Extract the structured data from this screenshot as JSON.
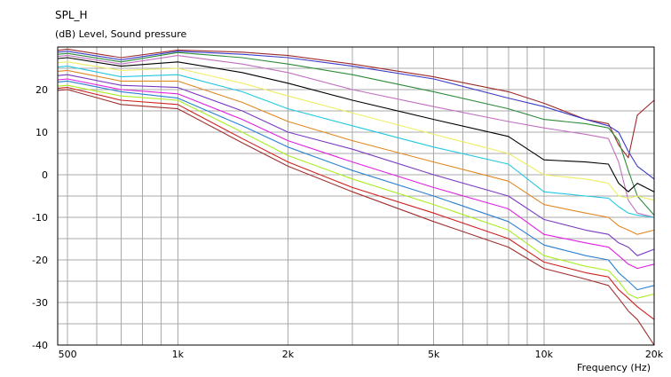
{
  "chart_data": {
    "type": "line",
    "title": "SPL_H",
    "ylabel": "(dB)  Level, Sound pressure",
    "xlabel": "Frequency  (Hz)",
    "x_scale": "log",
    "xlim": [
      470,
      20000
    ],
    "ylim": [
      -40,
      30
    ],
    "grid": true,
    "legend": "none",
    "x_ticks": [
      {
        "value": 500,
        "label": "500"
      },
      {
        "value": 1000,
        "label": "1k"
      },
      {
        "value": 2000,
        "label": "2k"
      },
      {
        "value": 5000,
        "label": "5k"
      },
      {
        "value": 10000,
        "label": "10k"
      },
      {
        "value": 20000,
        "label": "20k"
      }
    ],
    "x_minor": [
      600,
      700,
      800,
      900,
      3000,
      4000,
      6000,
      7000,
      8000,
      9000
    ],
    "y_ticks": [
      {
        "value": 20,
        "label": "20"
      },
      {
        "value": 10,
        "label": "10"
      },
      {
        "value": 0,
        "label": "0"
      },
      {
        "value": -10,
        "label": "-10"
      },
      {
        "value": -20,
        "label": "-20"
      },
      {
        "value": -30,
        "label": "-30"
      },
      {
        "value": -40,
        "label": "-40"
      }
    ],
    "y_grid": [
      30,
      25,
      20,
      15,
      10,
      5,
      0,
      -5,
      -10,
      -15,
      -20,
      -25,
      -30,
      -35,
      -40
    ],
    "x": [
      470,
      500,
      700,
      1000,
      1500,
      2000,
      3000,
      5000,
      8000,
      10000,
      13000,
      15000,
      16000,
      17000,
      18000,
      20000
    ],
    "series": [
      {
        "color": "#9c2a2a",
        "values": [
          29.2,
          29.5,
          27.5,
          29.3,
          28.8,
          28,
          26,
          23,
          19.5,
          16.8,
          13,
          12,
          7,
          4,
          14,
          17.5
        ]
      },
      {
        "color": "#3a3ac8",
        "values": [
          28.8,
          29,
          27,
          29,
          28.3,
          27.5,
          25.5,
          22.5,
          18,
          16,
          13,
          11.5,
          10,
          5.5,
          2,
          -1
        ]
      },
      {
        "color": "#2e8b3a",
        "values": [
          28.3,
          28.5,
          26.5,
          28.7,
          27.5,
          26,
          23.5,
          19.5,
          15.5,
          13,
          12,
          11,
          8,
          1,
          -5,
          -9.5
        ]
      },
      {
        "color": "#c070c0",
        "values": [
          27.8,
          28,
          26,
          28,
          26,
          24,
          20,
          16,
          12.5,
          11,
          9.5,
          8.5,
          3,
          -6,
          -9,
          -10
        ]
      },
      {
        "color": "#000000",
        "values": [
          27.3,
          27.5,
          25.5,
          26.5,
          24,
          21.5,
          17.5,
          13,
          9,
          3.5,
          3,
          2.5,
          -2,
          -4,
          -2,
          -4
        ]
      },
      {
        "color": "#eeee66",
        "values": [
          26.3,
          26.5,
          24.5,
          25,
          21.5,
          18.5,
          14.5,
          9.5,
          5,
          0,
          -1,
          -2,
          -5,
          -5.5,
          -5,
          -6
        ]
      },
      {
        "color": "#22c8e0",
        "values": [
          25.3,
          25.5,
          23,
          23.5,
          19.5,
          15.5,
          11.5,
          6.5,
          2.5,
          -4,
          -5,
          -5.5,
          -7.5,
          -9,
          -9.5,
          -10
        ]
      },
      {
        "color": "#e08822",
        "values": [
          24.3,
          24.5,
          22,
          22,
          17,
          12.5,
          8,
          3,
          -1.5,
          -7,
          -9,
          -10,
          -12,
          -13,
          -14,
          -13
        ]
      },
      {
        "color": "#7a3ac0",
        "values": [
          23.3,
          23.5,
          21,
          20.5,
          15,
          10,
          6,
          0,
          -5,
          -10.5,
          -13,
          -14,
          -16,
          -17,
          -19,
          -17.5
        ]
      },
      {
        "color": "#e020e0",
        "values": [
          22.3,
          22.5,
          20,
          19,
          13,
          8,
          3,
          -3,
          -8,
          -14,
          -16,
          -17,
          -19,
          -21,
          -22,
          -21
        ]
      },
      {
        "color": "#2a80d0",
        "values": [
          21.8,
          22,
          19.5,
          18,
          11.5,
          6.5,
          1,
          -5,
          -11,
          -16.5,
          -19,
          -20,
          -23,
          -25,
          -27,
          -26
        ]
      },
      {
        "color": "#aaee22",
        "values": [
          20.8,
          21,
          18.5,
          17.5,
          10,
          4.5,
          -1,
          -7,
          -13,
          -19,
          -21.5,
          -22.5,
          -25,
          -28,
          -29,
          -28
        ]
      },
      {
        "color": "#d02020",
        "values": [
          20.3,
          20.5,
          17.5,
          16.5,
          8.5,
          3,
          -3,
          -9,
          -15,
          -20.5,
          -23,
          -24,
          -27,
          -29,
          -31,
          -34
        ]
      },
      {
        "color": "#a03030",
        "values": [
          19.8,
          20,
          16.5,
          15.5,
          7.5,
          2,
          -4,
          -11,
          -17,
          -22,
          -24.5,
          -26,
          -29,
          -32,
          -34,
          -40
        ]
      }
    ]
  }
}
